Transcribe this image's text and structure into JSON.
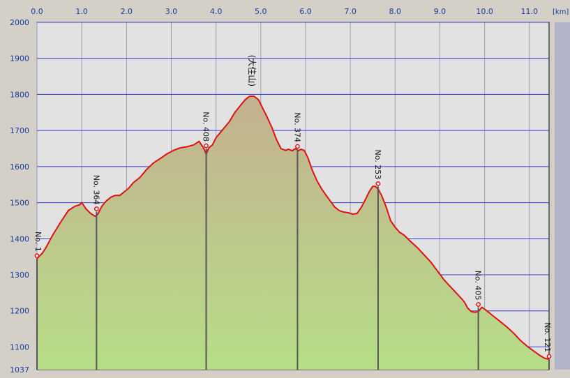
{
  "chart_data": {
    "type": "area",
    "title": "",
    "xlabel": "",
    "ylabel": "",
    "x_unit": "[km]",
    "xlim": [
      0,
      11.44
    ],
    "ylim": [
      1037,
      2000
    ],
    "x_ticks": [
      0.0,
      1.0,
      2.0,
      3.0,
      4.0,
      5.0,
      6.0,
      7.0,
      8.0,
      9.0,
      10.0,
      11.0
    ],
    "x_tick_labels": [
      "0.0",
      "1.0",
      "2.0",
      "3.0",
      "4.0",
      "5.0",
      "6.0",
      "7.0",
      "8.0",
      "9.0",
      "10.0",
      "11.0"
    ],
    "y_ticks": [
      1037,
      1100,
      1200,
      1300,
      1400,
      1500,
      1600,
      1700,
      1800,
      1900,
      2000
    ],
    "y_tick_labels": [
      "1037",
      "1100",
      "1200",
      "1300",
      "1400",
      "1500",
      "1600",
      "1700",
      "1800",
      "1900",
      "2000"
    ],
    "grid": true,
    "series": [
      {
        "values_x": [
          0.0,
          0.12,
          0.2,
          0.35,
          0.55,
          0.7,
          0.85,
          0.95,
          1.0,
          1.1,
          1.2,
          1.3,
          1.36,
          1.45,
          1.55,
          1.65,
          1.75,
          1.85,
          1.95,
          2.05,
          2.15,
          2.3,
          2.45,
          2.6,
          2.75,
          2.9,
          3.05,
          3.2,
          3.35,
          3.5,
          3.62,
          3.72,
          3.78,
          3.84,
          3.92,
          4.0,
          4.1,
          4.2,
          4.3,
          4.42,
          4.55,
          4.65,
          4.75,
          4.85,
          4.95,
          5.05,
          5.15,
          5.25,
          5.35,
          5.45,
          5.55,
          5.62,
          5.7,
          5.78,
          5.84,
          5.9,
          5.97,
          6.05,
          6.15,
          6.25,
          6.35,
          6.45,
          6.55,
          6.65,
          6.75,
          6.85,
          6.95,
          7.05,
          7.15,
          7.25,
          7.35,
          7.42,
          7.5,
          7.56,
          7.62,
          7.7,
          7.8,
          7.9,
          8.0,
          8.1,
          8.2,
          8.35,
          8.5,
          8.65,
          8.8,
          8.95,
          9.1,
          9.25,
          9.4,
          9.5,
          9.56,
          9.62,
          9.7,
          9.78,
          9.86,
          9.94,
          10.05,
          10.2,
          10.35,
          10.5,
          10.65,
          10.8,
          10.95,
          11.1,
          11.25,
          11.35,
          11.44
        ],
        "values_y": [
          1345,
          1360,
          1375,
          1410,
          1450,
          1478,
          1490,
          1494,
          1500,
          1482,
          1470,
          1462,
          1468,
          1490,
          1505,
          1515,
          1520,
          1520,
          1530,
          1540,
          1555,
          1570,
          1592,
          1610,
          1622,
          1635,
          1645,
          1652,
          1655,
          1660,
          1670,
          1652,
          1635,
          1652,
          1660,
          1680,
          1695,
          1710,
          1725,
          1750,
          1770,
          1785,
          1795,
          1795,
          1785,
          1760,
          1735,
          1708,
          1675,
          1650,
          1645,
          1648,
          1644,
          1650,
          1644,
          1648,
          1645,
          1625,
          1590,
          1562,
          1540,
          1522,
          1505,
          1488,
          1478,
          1474,
          1472,
          1468,
          1470,
          1488,
          1512,
          1530,
          1545,
          1545,
          1538,
          1520,
          1488,
          1450,
          1432,
          1418,
          1410,
          1392,
          1375,
          1355,
          1335,
          1310,
          1285,
          1265,
          1245,
          1232,
          1222,
          1208,
          1198,
          1196,
          1198,
          1210,
          1200,
          1185,
          1170,
          1155,
          1138,
          1118,
          1102,
          1088,
          1075,
          1068,
          1066
        ]
      }
    ],
    "markers": [
      {
        "label": "No. 1",
        "x": 0.0,
        "y": 1345
      },
      {
        "label": "No. 364",
        "x": 1.33,
        "y": 1475
      },
      {
        "label": "No. 408",
        "x": 3.78,
        "y": 1650
      },
      {
        "label": "No. 374",
        "x": 5.82,
        "y": 1648
      },
      {
        "label": "No. 253",
        "x": 7.62,
        "y": 1545
      },
      {
        "label": "No. 405",
        "x": 9.86,
        "y": 1210
      },
      {
        "label": "No. 121",
        "x": 11.44,
        "y": 1066
      }
    ],
    "peak_label": {
      "label": "(大住山)",
      "x": 4.8,
      "y": 1795
    },
    "colors": {
      "background": "#d4d0c8",
      "plot_bg": "#e2e2e2",
      "grid_v": "#9a9ab4",
      "grid_h": "#3a3ad0",
      "line": "#e01010",
      "fill_top": "#c4b090",
      "fill_bottom": "#b6de88",
      "marker_line": "#555555"
    }
  }
}
